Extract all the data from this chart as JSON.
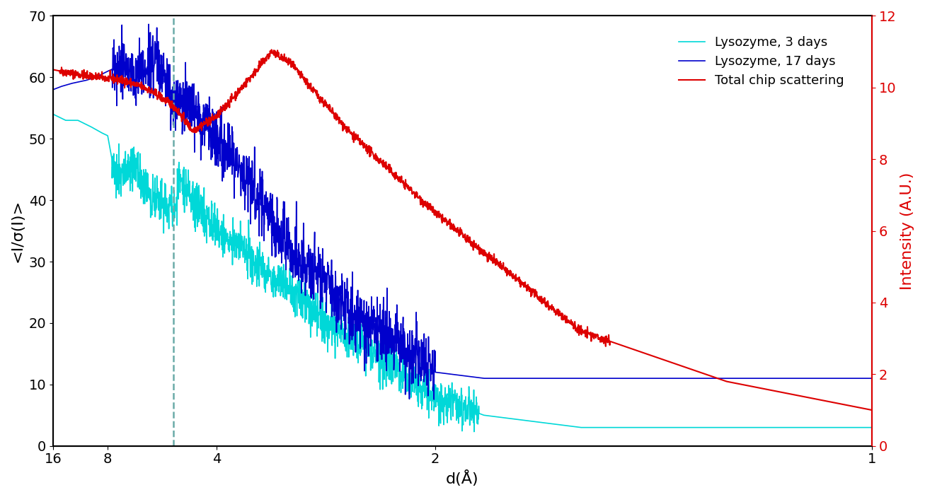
{
  "title": "",
  "xlabel": "d(Å)",
  "ylabel_left": "<I/σ(I)>",
  "ylabel_right": "Intensity (A.U.)",
  "xlim_inv": [
    0.0625,
    1.0
  ],
  "ylim_left": [
    0,
    70
  ],
  "ylim_right": [
    0,
    12
  ],
  "xticks_d": [
    16,
    8,
    4,
    2,
    1
  ],
  "yticks_left": [
    0,
    10,
    20,
    30,
    40,
    50,
    60,
    70
  ],
  "yticks_right": [
    0,
    2,
    4,
    6,
    8,
    10,
    12
  ],
  "dashed_line_d": 5.0,
  "dashed_color": "#6aaba8",
  "colors": {
    "cyan": "#00d8d8",
    "blue": "#0000cc",
    "red": "#dd0000"
  },
  "legend": [
    "Lysozyme, 3 days",
    "Lysozyme, 17 days",
    "Total chip scattering"
  ],
  "background": "#ffffff",
  "fontsize_label": 16,
  "fontsize_tick": 14,
  "fontsize_legend": 13
}
